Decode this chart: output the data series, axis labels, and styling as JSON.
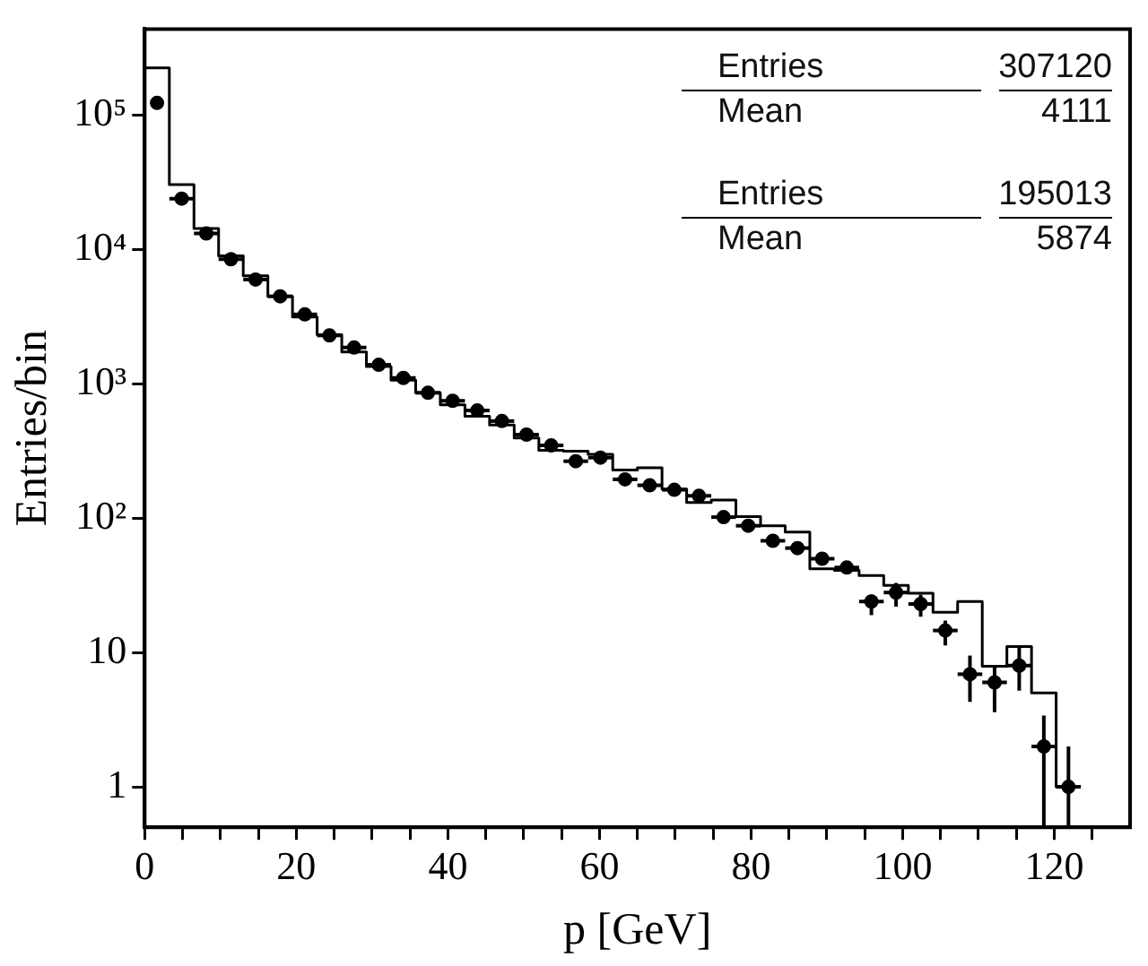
{
  "chart_data": {
    "type": "histogram",
    "xlabel": "p [GeV]",
    "ylabel": "Entries/bin",
    "log": true,
    "grid": false,
    "legend": false,
    "xlim": [
      0,
      130
    ],
    "ylim": [
      0.5,
      440000
    ],
    "xticks": [
      0,
      {
        "value": 5,
        "label": null
      },
      {
        "value": 10,
        "label": null
      },
      {
        "value": 15,
        "label": null
      },
      20,
      {
        "value": 25,
        "label": null
      },
      {
        "value": 30,
        "label": null
      },
      {
        "value": 35,
        "label": null
      },
      40,
      {
        "value": 45,
        "label": null
      },
      {
        "value": 50,
        "label": null
      },
      {
        "value": 55,
        "label": null
      },
      60,
      {
        "value": 65,
        "label": null
      },
      {
        "value": 70,
        "label": null
      },
      {
        "value": 75,
        "label": null
      },
      80,
      {
        "value": 85,
        "label": null
      },
      {
        "value": 90,
        "label": null
      },
      {
        "value": 95,
        "label": null
      },
      100,
      {
        "value": 105,
        "label": null
      },
      {
        "value": 110,
        "label": null
      },
      {
        "value": 115,
        "label": null
      },
      120,
      {
        "value": 125,
        "label": null
      }
    ],
    "yticks": [
      1,
      10,
      {
        "value": 100,
        "label": "10²"
      },
      {
        "value": 1000,
        "label": "10³"
      },
      {
        "value": 10000,
        "label": "10⁴"
      },
      {
        "value": 100000,
        "label": "10⁵"
      }
    ],
    "bins": [
      0,
      3.25,
      6.5,
      9.75,
      13,
      16.25,
      19.5,
      22.75,
      26,
      29.25,
      32.5,
      35.75,
      39,
      42.25,
      45.5,
      48.75,
      52,
      55.25,
      58.5,
      61.75,
      65,
      68.25,
      71.5,
      74.75,
      78,
      81.25,
      84.5,
      87.75,
      91,
      94.25,
      97.5,
      100.75,
      104,
      107.25,
      110.5,
      113.75,
      117,
      120.25,
      123.5
    ],
    "series": [
      {
        "type": "histogram",
        "color": "#000000",
        "line_style": "solid",
        "values": [
          226000,
          30500,
          14400,
          9000,
          6400,
          4500,
          3150,
          2330,
          1730,
          1350,
          1070,
          860,
          700,
          575,
          495,
          397,
          321,
          316,
          300,
          229,
          238,
          165,
          131,
          137,
          103,
          88,
          79,
          42,
          41,
          37.5,
          31.6,
          27.7,
          20,
          24,
          7.9,
          11.1,
          5,
          1
        ]
      },
      {
        "type": "scatter",
        "color": "#000000",
        "marker": "circle",
        "x": [
          1.625,
          4.875,
          8.125,
          11.375,
          14.625,
          17.875,
          21.125,
          24.375,
          27.625,
          30.875,
          34.125,
          37.375,
          40.625,
          43.875,
          47.125,
          50.375,
          53.625,
          56.875,
          60.125,
          63.375,
          66.625,
          69.875,
          73.125,
          76.375,
          79.625,
          82.875,
          86.125,
          89.375,
          92.625,
          95.875,
          99.125,
          102.375,
          105.625,
          108.875,
          112.125,
          115.375,
          118.625,
          121.875
        ],
        "values": [
          124000,
          24000,
          13200,
          8500,
          6000,
          4500,
          3300,
          2300,
          1870,
          1390,
          1110,
          860,
          750,
          635,
          530,
          420,
          349,
          266,
          283,
          195,
          176,
          163,
          147,
          102,
          88,
          68,
          60,
          50,
          43,
          24,
          28,
          23,
          14.6,
          6.9,
          6,
          8,
          2,
          1
        ],
        "errors": [
          null,
          null,
          null,
          null,
          null,
          null,
          null,
          null,
          null,
          null,
          null,
          null,
          null,
          null,
          null,
          null,
          null,
          null,
          null,
          null,
          null,
          null,
          null,
          null,
          null,
          null,
          null,
          null,
          null,
          [
            19,
            27
          ],
          [
            22,
            33
          ],
          [
            18.5,
            27
          ],
          [
            11.3,
            17.3
          ],
          [
            4.3,
            9.5
          ],
          [
            3.6,
            8
          ],
          [
            5.2,
            11
          ],
          [
            0.5,
            3.4
          ],
          [
            0.5,
            2
          ]
        ],
        "xerrors": [
          null,
          1.625,
          1.625,
          1.625,
          1.625,
          1.625,
          1.625,
          1.625,
          1.625,
          1.625,
          1.625,
          1.625,
          1.625,
          1.625,
          1.625,
          1.625,
          1.625,
          1.625,
          1.625,
          1.625,
          1.625,
          1.625,
          1.625,
          1.625,
          1.625,
          1.625,
          1.625,
          1.625,
          1.625,
          1.625,
          1.625,
          1.625,
          1.625,
          1.625,
          1.625,
          1.625,
          1.625,
          1.625
        ]
      }
    ],
    "annotations": [
      "Entries",
      "307120",
      "Mean",
      "4111",
      "Entries",
      "195013",
      "Mean",
      "5874"
    ]
  }
}
